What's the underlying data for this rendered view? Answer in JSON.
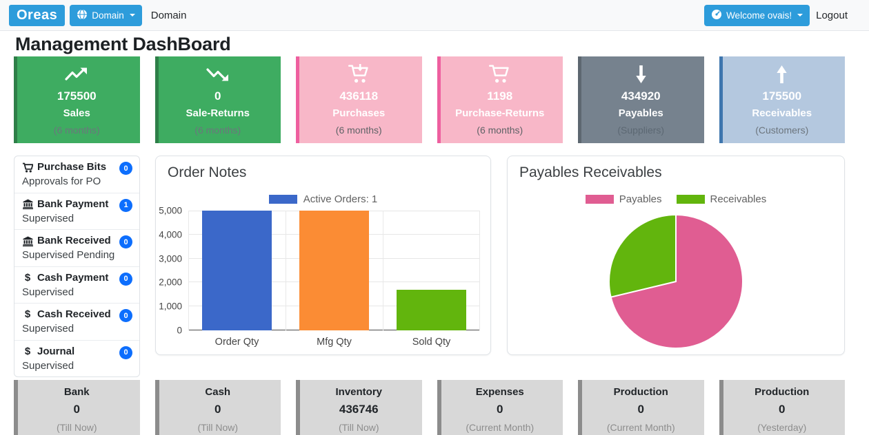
{
  "navbar": {
    "brand": "Oreas",
    "domain_button_label": "Domain",
    "domain_text": "Domain",
    "welcome_button_label": "Welcome ovais!",
    "logout_label": "Logout",
    "button_color": "#2d9cdb"
  },
  "page_title": "Management DashBoard",
  "stat_cards": [
    {
      "name": "sales",
      "icon": "trend-up-icon",
      "value": "175500",
      "label": "Sales",
      "sublabel": "(6 months)",
      "bg": "#3eac61",
      "accent": "#2e7f48",
      "sub_color": "#6c757d"
    },
    {
      "name": "sale-returns",
      "icon": "trend-down-icon",
      "value": "0",
      "label": "Sale-Returns",
      "sublabel": "(6 months)",
      "bg": "#3eac61",
      "accent": "#2e7f48",
      "sub_color": "#6c757d"
    },
    {
      "name": "purchases",
      "icon": "cart-arrow-down-icon",
      "value": "436118",
      "label": "Purchases",
      "sublabel": "(6 months)",
      "bg": "#f8b7c8",
      "accent": "#ee5f9f",
      "sub_color": "#5e6266"
    },
    {
      "name": "purchase-returns",
      "icon": "cart-icon",
      "value": "1198",
      "label": "Purchase-Returns",
      "sublabel": "(6 months)",
      "bg": "#f8b7c8",
      "accent": "#ee5f9f",
      "sub_color": "#5e6266"
    },
    {
      "name": "payables",
      "icon": "arrow-down-icon",
      "value": "434920",
      "label": "Payables",
      "sublabel": "(Suppliers)",
      "bg": "#76828e",
      "accent": "#5d6770",
      "sub_color": "#5c6873"
    },
    {
      "name": "receivables",
      "icon": "arrow-up-icon",
      "value": "175500",
      "label": "Receivables",
      "sublabel": "(Customers)",
      "bg": "#b4c8df",
      "accent": "#3e76ae",
      "sub_color": "#6c757d"
    }
  ],
  "approval_list": [
    {
      "icon": "cart-solid-icon",
      "title": "Purchase Bits",
      "badge": "0",
      "subtitle": "Approvals for PO"
    },
    {
      "icon": "bank-icon",
      "title": "Bank Payment",
      "badge": "1",
      "subtitle": "Supervised"
    },
    {
      "icon": "bank-icon",
      "title": "Bank Received",
      "badge": "0",
      "subtitle": "Supervised Pending"
    },
    {
      "icon": "dollar-icon",
      "title": "Cash Payment",
      "badge": "0",
      "subtitle": "Supervised"
    },
    {
      "icon": "dollar-icon",
      "title": "Cash Received",
      "badge": "0",
      "subtitle": "Supervised"
    },
    {
      "icon": "dollar-icon",
      "title": "Journal",
      "badge": "0",
      "subtitle": "Supervised"
    }
  ],
  "chart_data": [
    {
      "type": "bar",
      "title": "Order Notes",
      "legend": [
        "Active Orders: 1"
      ],
      "legend_color": "#3b68c9",
      "categories": [
        "Order Qty",
        "Mfg Qty",
        "Sold Qty"
      ],
      "values": [
        5000,
        5000,
        1700
      ],
      "bar_colors": [
        "#3b68c9",
        "#fb8c34",
        "#62b50d"
      ],
      "ylim": [
        0,
        5000
      ],
      "yticks": [
        "0",
        "1,000",
        "2,000",
        "3,000",
        "4,000",
        "5,000"
      ],
      "grid": true,
      "legend_position": "top"
    },
    {
      "type": "pie",
      "title": "Payables Receivables",
      "labels": [
        "Payables",
        "Receivables"
      ],
      "values": [
        434920,
        175500
      ],
      "colors": [
        "#e05d92",
        "#62b50d"
      ],
      "legend_position": "top"
    }
  ],
  "bottom_cards": [
    {
      "name": "bank",
      "label": "Bank",
      "value": "0",
      "sublabel": "(Till Now)"
    },
    {
      "name": "cash",
      "label": "Cash",
      "value": "0",
      "sublabel": "(Till Now)"
    },
    {
      "name": "inventory",
      "label": "Inventory",
      "value": "436746",
      "sublabel": "(Till Now)"
    },
    {
      "name": "expenses",
      "label": "Expenses",
      "value": "0",
      "sublabel": "(Current Month)"
    },
    {
      "name": "production-month",
      "label": "Production",
      "value": "0",
      "sublabel": "(Current Month)"
    },
    {
      "name": "production-yesterday",
      "label": "Production",
      "value": "0",
      "sublabel": "(Yesterday)"
    }
  ]
}
